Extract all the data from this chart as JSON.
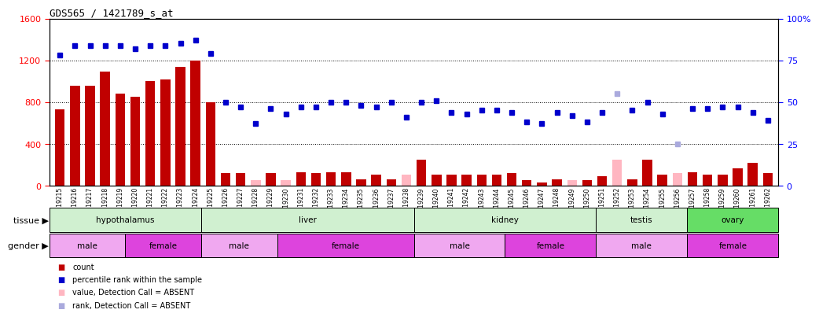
{
  "title": "GDS565 / 1421789_s_at",
  "samples": [
    "GSM19215",
    "GSM19216",
    "GSM19217",
    "GSM19218",
    "GSM19219",
    "GSM19220",
    "GSM19221",
    "GSM19222",
    "GSM19223",
    "GSM19224",
    "GSM19225",
    "GSM19226",
    "GSM19227",
    "GSM19228",
    "GSM19229",
    "GSM19230",
    "GSM19231",
    "GSM19232",
    "GSM19233",
    "GSM19234",
    "GSM19235",
    "GSM19236",
    "GSM19237",
    "GSM19238",
    "GSM19239",
    "GSM19240",
    "GSM19241",
    "GSM19242",
    "GSM19243",
    "GSM19244",
    "GSM19245",
    "GSM19246",
    "GSM19247",
    "GSM19248",
    "GSM19249",
    "GSM19250",
    "GSM19251",
    "GSM19252",
    "GSM19253",
    "GSM19254",
    "GSM19255",
    "GSM19256",
    "GSM19257",
    "GSM19258",
    "GSM19259",
    "GSM19260",
    "GSM19261",
    "GSM19262"
  ],
  "count_values": [
    730,
    960,
    960,
    1090,
    880,
    850,
    1000,
    1020,
    1140,
    1200,
    800,
    120,
    120,
    50,
    120,
    50,
    130,
    120,
    130,
    130,
    60,
    110,
    60,
    110,
    250,
    110,
    110,
    110,
    110,
    110,
    120,
    50,
    30,
    60,
    50,
    50,
    90,
    250,
    60,
    250,
    110,
    120,
    130,
    110,
    110,
    170,
    220,
    120
  ],
  "count_absent": [
    false,
    false,
    false,
    false,
    false,
    false,
    false,
    false,
    false,
    false,
    false,
    false,
    false,
    true,
    false,
    true,
    false,
    false,
    false,
    false,
    false,
    false,
    false,
    true,
    false,
    false,
    false,
    false,
    false,
    false,
    false,
    false,
    false,
    false,
    true,
    false,
    false,
    true,
    false,
    false,
    false,
    true,
    false,
    false,
    false,
    false,
    false,
    false
  ],
  "percentile_values": [
    78,
    84,
    84,
    84,
    84,
    82,
    84,
    84,
    85,
    87,
    79,
    50,
    47,
    37,
    46,
    43,
    47,
    47,
    50,
    50,
    48,
    47,
    50,
    41,
    50,
    51,
    44,
    43,
    45,
    45,
    44,
    38,
    37,
    44,
    42,
    38,
    44,
    55,
    45,
    50,
    43,
    25,
    46,
    46,
    47,
    47,
    44,
    39
  ],
  "percentile_absent": [
    false,
    false,
    false,
    false,
    false,
    false,
    false,
    false,
    false,
    false,
    false,
    false,
    false,
    false,
    false,
    false,
    false,
    false,
    false,
    false,
    false,
    false,
    false,
    false,
    false,
    false,
    false,
    false,
    false,
    false,
    false,
    false,
    false,
    false,
    false,
    false,
    false,
    true,
    false,
    false,
    false,
    true,
    false,
    false,
    false,
    false,
    false,
    false
  ],
  "tissues": [
    {
      "name": "hypothalamus",
      "start": 0,
      "end": 10,
      "color": "#d0f0d0"
    },
    {
      "name": "liver",
      "start": 10,
      "end": 24,
      "color": "#d0f0d0"
    },
    {
      "name": "kidney",
      "start": 24,
      "end": 36,
      "color": "#d0f0d0"
    },
    {
      "name": "testis",
      "start": 36,
      "end": 42,
      "color": "#d0f0d0"
    },
    {
      "name": "ovary",
      "start": 42,
      "end": 48,
      "color": "#66dd66"
    }
  ],
  "genders": [
    {
      "name": "male",
      "start": 0,
      "end": 5,
      "color": "#f0a8f0"
    },
    {
      "name": "female",
      "start": 5,
      "end": 10,
      "color": "#dd44dd"
    },
    {
      "name": "male",
      "start": 10,
      "end": 15,
      "color": "#f0a8f0"
    },
    {
      "name": "female",
      "start": 15,
      "end": 24,
      "color": "#dd44dd"
    },
    {
      "name": "male",
      "start": 24,
      "end": 30,
      "color": "#f0a8f0"
    },
    {
      "name": "female",
      "start": 30,
      "end": 36,
      "color": "#dd44dd"
    },
    {
      "name": "male",
      "start": 36,
      "end": 42,
      "color": "#f0a8f0"
    },
    {
      "name": "female",
      "start": 42,
      "end": 48,
      "color": "#dd44dd"
    }
  ],
  "ylim_left": [
    0,
    1600
  ],
  "ylim_right": [
    0,
    100
  ],
  "yticks_left": [
    0,
    400,
    800,
    1200,
    1600
  ],
  "yticks_right": [
    0,
    25,
    50,
    75,
    100
  ],
  "bar_color_present": "#c00000",
  "bar_color_absent": "#ffb6c1",
  "dot_color_present": "#0000cc",
  "dot_color_absent": "#aaaadd",
  "legend_items": [
    {
      "label": "count",
      "color": "#c00000"
    },
    {
      "label": "percentile rank within the sample",
      "color": "#0000cc"
    },
    {
      "label": "value, Detection Call = ABSENT",
      "color": "#ffb6c1"
    },
    {
      "label": "rank, Detection Call = ABSENT",
      "color": "#aaaadd"
    }
  ]
}
